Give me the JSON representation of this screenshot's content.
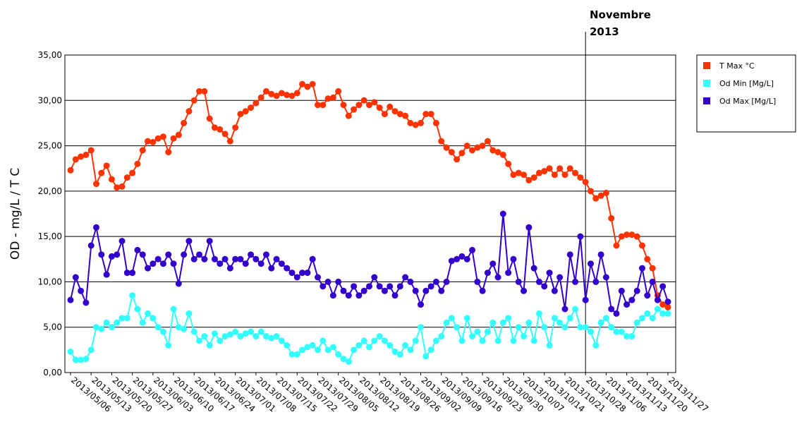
{
  "chart_data": {
    "type": "line",
    "y_label": "OD - mg/L / T C",
    "annotation": [
      "Novembre",
      "2013"
    ],
    "vline_category": "2013/10/28",
    "categories": [
      "2013/05/06",
      null,
      null,
      null,
      "2013/05/13",
      null,
      null,
      null,
      "2013/05/20",
      null,
      null,
      null,
      "2013/05/27",
      null,
      null,
      null,
      "2013/06/03",
      null,
      null,
      null,
      "2013/06/10",
      null,
      null,
      null,
      "2013/06/17",
      null,
      null,
      null,
      "2013/06/24",
      null,
      null,
      null,
      "2013/07/01",
      null,
      null,
      null,
      "2013/07/08",
      null,
      null,
      null,
      "2013/07/15",
      null,
      null,
      null,
      "2013/07/22",
      null,
      null,
      null,
      "2013/07/29",
      null,
      null,
      null,
      "2013/08/05",
      null,
      null,
      null,
      "2013/08/12",
      null,
      null,
      null,
      "2013/08/19",
      null,
      null,
      null,
      "2013/08/26",
      null,
      null,
      null,
      "2013/09/02",
      null,
      null,
      null,
      "2013/09/09",
      null,
      null,
      null,
      "2013/09/16",
      null,
      null,
      null,
      "2013/09/23",
      null,
      null,
      null,
      "2013/09/30",
      null,
      null,
      null,
      "2013/10/07",
      null,
      null,
      null,
      "2013/10/14",
      null,
      null,
      null,
      "2013/10/21",
      null,
      null,
      null,
      "2013/10/28",
      null,
      null,
      null,
      "2013/11/06",
      null,
      null,
      null,
      "2013/11/13",
      null,
      null,
      null,
      "2013/11/20",
      null,
      null,
      null,
      "2013/11/27"
    ],
    "series": [
      {
        "name": "T Max °C",
        "color": "#ff3300",
        "values": [
          22.3,
          23.5,
          23.8,
          24,
          24.5,
          20.8,
          22,
          22.8,
          21.3,
          20.4,
          20.5,
          21.5,
          22,
          23,
          24.5,
          25.5,
          25.4,
          25.8,
          26,
          24.3,
          25.8,
          26.2,
          27.5,
          28.8,
          30,
          31,
          31,
          28,
          27,
          26.8,
          26.3,
          25.5,
          27,
          28.5,
          28.8,
          29.2,
          29.7,
          30.3,
          31,
          30.7,
          30.5,
          30.8,
          30.6,
          30.5,
          30.8,
          31.8,
          31.5,
          31.8,
          29.5,
          29.5,
          30.2,
          30.3,
          31,
          29.5,
          28.3,
          29,
          29.5,
          30,
          29.5,
          29.8,
          29.2,
          28.5,
          29.3,
          28.8,
          28.5,
          28.3,
          27.5,
          27.3,
          27.5,
          28.5,
          28.5,
          27.5,
          25.5,
          24.8,
          24.3,
          23.5,
          24.2,
          25,
          24.5,
          24.8,
          25,
          25.5,
          24.5,
          24.3,
          24,
          23,
          21.8,
          22,
          21.8,
          21.2,
          21.5,
          22,
          22.2,
          22.5,
          21.8,
          22.5,
          21.8,
          22.5,
          22,
          21.5,
          21,
          20,
          19.2,
          19.5,
          19.8,
          17,
          14,
          15,
          15.2,
          15.2,
          15,
          14,
          12.5,
          11.5,
          8.5,
          7.5,
          7.2
        ]
      },
      {
        "name": "Od Min [Mg/L]",
        "color": "#33ffff",
        "values": [
          2.3,
          1.4,
          1.4,
          1.5,
          2.5,
          5,
          4.8,
          5.5,
          5,
          5.5,
          6,
          6,
          8.5,
          7,
          5.5,
          6.5,
          6,
          5,
          4.5,
          3,
          7,
          5,
          4.8,
          6.5,
          4.5,
          3.5,
          4,
          3,
          4.3,
          3.5,
          4,
          4.2,
          4.5,
          4,
          4.3,
          4.5,
          4,
          4.5,
          4,
          3.8,
          4,
          3.5,
          3,
          2,
          2,
          2.5,
          2.8,
          3,
          2.5,
          3.5,
          2.5,
          2.8,
          2,
          1.5,
          1.2,
          2.5,
          3,
          3.5,
          2.8,
          3.5,
          4,
          3.5,
          3,
          2.3,
          2,
          3,
          2.5,
          3.5,
          5,
          1.8,
          2.5,
          3.5,
          4,
          5.5,
          6,
          5,
          3.5,
          6,
          4,
          4.5,
          3.5,
          4.5,
          5.5,
          3.5,
          5.5,
          6,
          3.5,
          5,
          4,
          5.5,
          3.5,
          6.5,
          5,
          3,
          6,
          5.5,
          5,
          6,
          7,
          5,
          5,
          4.5,
          3,
          5.5,
          6,
          5,
          4.5,
          4.5,
          4,
          4,
          5.5,
          6,
          6.5,
          6,
          7,
          6.5,
          6.5
        ]
      },
      {
        "name": "Od Max [Mg/L]",
        "color": "#3300cc",
        "values": [
          8,
          10.5,
          9,
          7.7,
          14,
          16,
          13,
          10.8,
          12.8,
          13,
          14.5,
          11,
          11,
          13.5,
          13,
          11.5,
          12,
          12.5,
          12,
          13,
          12,
          9.8,
          13,
          14.5,
          12.5,
          13,
          12.5,
          14.5,
          12.5,
          12,
          12.5,
          11.5,
          12.5,
          12.5,
          12,
          13,
          12.5,
          12,
          13,
          11.5,
          12.5,
          12,
          11.5,
          11,
          10.5,
          11,
          11,
          12.5,
          10.5,
          9.5,
          10,
          8.5,
          10,
          9,
          8.5,
          9.5,
          8.5,
          9,
          9.5,
          10.5,
          9.5,
          9,
          9.5,
          8.5,
          9.5,
          10.5,
          10,
          9,
          7.5,
          9,
          9.5,
          10,
          9,
          10,
          12.3,
          12.5,
          12.8,
          12.5,
          13.5,
          10,
          9,
          11,
          12,
          10.5,
          17.5,
          11,
          12.5,
          10,
          9,
          16,
          11.5,
          10,
          9.5,
          11,
          9,
          10.5,
          7,
          13,
          10,
          15,
          8,
          12,
          10,
          13,
          10.5,
          7,
          6.5,
          9,
          7.5,
          8,
          9,
          11.5,
          8.5,
          10,
          8,
          9.5,
          7.8
        ]
      }
    ],
    "ylim": [
      0,
      35
    ],
    "yticks": [
      {
        "value": 0,
        "label": "0,00"
      },
      {
        "value": 5,
        "label": "5,00"
      },
      {
        "value": 10,
        "label": "10,00"
      },
      {
        "value": 15,
        "label": "15,00"
      },
      {
        "value": 20,
        "label": "20,00"
      },
      {
        "value": 25,
        "label": "25,00"
      },
      {
        "value": 30,
        "label": "30,00"
      },
      {
        "value": 35,
        "label": "35,00"
      }
    ],
    "grid": true,
    "legend": "right"
  }
}
